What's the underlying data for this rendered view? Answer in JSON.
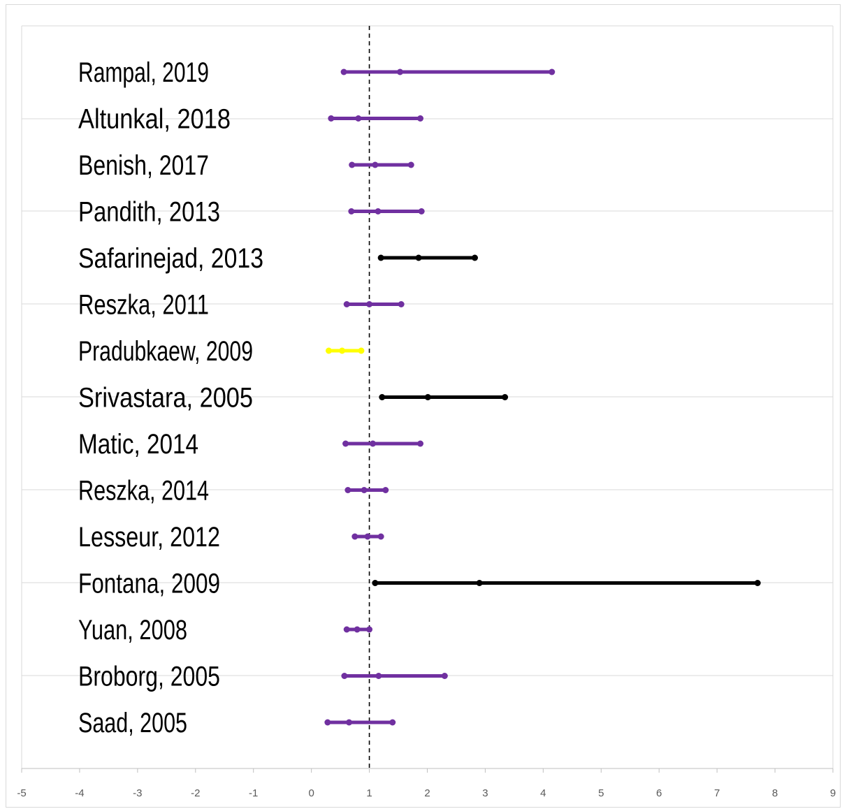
{
  "chart_data": {
    "type": "forest",
    "title": "",
    "xlabel": "",
    "ylabel": "",
    "xlim": [
      -5,
      9
    ],
    "x_ticks": [
      -5,
      -4,
      -3,
      -2,
      -1,
      0,
      1,
      2,
      3,
      4,
      5,
      6,
      7,
      8,
      9
    ],
    "reference_line": 1,
    "grid": "horizontal",
    "legend": "none",
    "colors": {
      "purple": "#7030a0",
      "black": "#000000",
      "yellow": "#ffff00"
    },
    "studies": [
      {
        "label": "Rampal, 2019",
        "estimate": 1.53,
        "low": 0.56,
        "high": 4.15,
        "color": "#7030a0"
      },
      {
        "label": "Altunkal, 2018",
        "estimate": 0.81,
        "low": 0.34,
        "high": 1.88,
        "color": "#7030a0"
      },
      {
        "label": "Benish, 2017",
        "estimate": 1.1,
        "low": 0.7,
        "high": 1.72,
        "color": "#7030a0"
      },
      {
        "label": "Pandith, 2013",
        "estimate": 1.15,
        "low": 0.69,
        "high": 1.9,
        "color": "#7030a0"
      },
      {
        "label": "Safarinejad, 2013",
        "estimate": 1.85,
        "low": 1.2,
        "high": 2.82,
        "color": "#000000"
      },
      {
        "label": "Reszka, 2011",
        "estimate": 1.0,
        "low": 0.61,
        "high": 1.55,
        "color": "#7030a0"
      },
      {
        "label": "Pradubkaew, 2009",
        "estimate": 0.53,
        "low": 0.3,
        "high": 0.86,
        "color": "#ffff00"
      },
      {
        "label": "Srivastara, 2005",
        "estimate": 2.01,
        "low": 1.22,
        "high": 3.34,
        "color": "#000000"
      },
      {
        "label": "Matic, 2014",
        "estimate": 1.06,
        "low": 0.59,
        "high": 1.88,
        "color": "#7030a0"
      },
      {
        "label": "Reszka, 2014",
        "estimate": 0.91,
        "low": 0.63,
        "high": 1.28,
        "color": "#7030a0"
      },
      {
        "label": "Lesseur, 2012",
        "estimate": 0.97,
        "low": 0.75,
        "high": 1.2,
        "color": "#7030a0"
      },
      {
        "label": "Fontana, 2009",
        "estimate": 2.9,
        "low": 1.1,
        "high": 7.7,
        "color": "#000000"
      },
      {
        "label": "Yuan, 2008",
        "estimate": 0.79,
        "low": 0.61,
        "high": 1.0,
        "color": "#7030a0"
      },
      {
        "label": "Broborg, 2005",
        "estimate": 1.16,
        "low": 0.57,
        "high": 2.3,
        "color": "#7030a0"
      },
      {
        "label": "Saad, 2005",
        "estimate": 0.65,
        "low": 0.28,
        "high": 1.4,
        "color": "#7030a0"
      }
    ]
  }
}
